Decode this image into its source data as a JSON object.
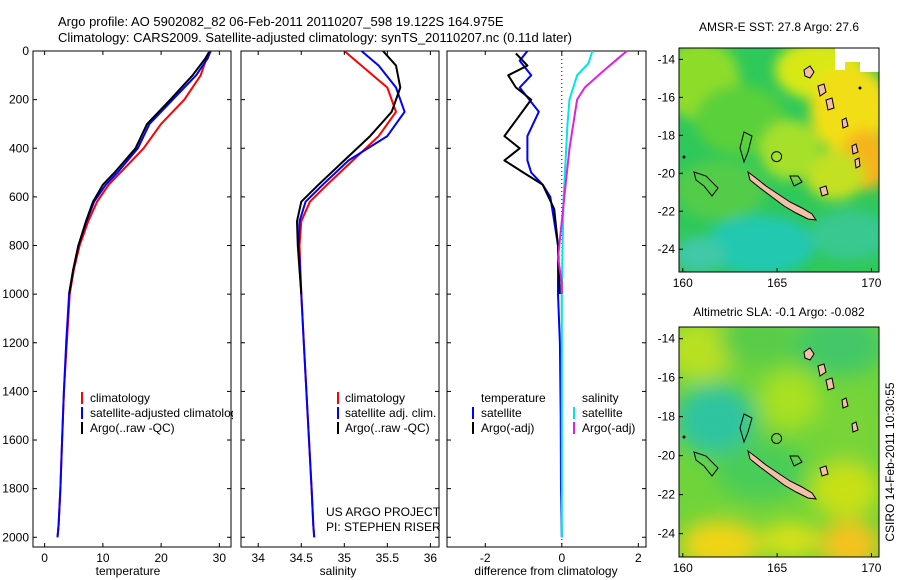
{
  "header": {
    "title_line1": "Argo profile: AO 5902082_82 06-Feb-2011 20110207_598 19.122S 164.975E",
    "title_line2": "Climatology: CARS2009. Satellite-adjusted climatology: synTS_20110207.nc (0.11d later)"
  },
  "colors": {
    "climatology": "#ff0000",
    "satellite": "#0000ff",
    "argo": "#000000",
    "sal_satellite": "#00e5e5",
    "sal_argo": "#e020e0",
    "land": "#f4bfa8"
  },
  "pi_text": {
    "line1": "US ARGO PROJECT",
    "line2": "PI: STEPHEN RISER"
  },
  "side_label": "CSIRO 14-Feb-2011 10:30:55",
  "chart_data": [
    {
      "type": "line",
      "name": "temperature-profile",
      "title": "",
      "xlabel": "temperature",
      "ylabel": "",
      "xlim": [
        -2,
        32
      ],
      "ylim": [
        2040,
        0
      ],
      "xticks": [
        0,
        10,
        20,
        30
      ],
      "yticks": [
        0,
        200,
        400,
        600,
        800,
        1000,
        1200,
        1400,
        1600,
        1800,
        2000
      ],
      "legend": [
        "climatology",
        "satellite-adjusted climatology",
        "Argo(..raw -QC)"
      ],
      "series": [
        {
          "name": "climatology",
          "color": "#ff0000",
          "x": [
            28.3,
            27.8,
            26.8,
            24.0,
            20.0,
            17.0,
            13.0,
            11.0,
            9.0,
            7.5,
            6.0,
            5.0,
            4.3,
            3.8,
            3.3,
            3.0,
            2.7,
            2.4,
            2.2
          ],
          "y": [
            0,
            30,
            100,
            200,
            300,
            400,
            500,
            550,
            620,
            700,
            800,
            900,
            1000,
            1200,
            1400,
            1600,
            1800,
            1950,
            2000
          ]
        },
        {
          "name": "satellite",
          "color": "#0000ff",
          "x": [
            28.5,
            28.0,
            26.0,
            22.0,
            18.0,
            16.0,
            12.5,
            10.5,
            8.5,
            7.2,
            5.8,
            4.9,
            4.2,
            3.7,
            3.3,
            3.0,
            2.7,
            2.4,
            2.2
          ],
          "y": [
            0,
            30,
            100,
            200,
            300,
            400,
            500,
            550,
            620,
            700,
            800,
            900,
            1000,
            1200,
            1400,
            1600,
            1800,
            1950,
            2000
          ]
        },
        {
          "name": "Argo",
          "color": "#000000",
          "x": [
            28.2,
            27.6,
            25.4,
            21.6,
            17.6,
            15.6,
            12.0,
            10.0,
            8.3,
            7.1,
            5.8,
            4.9,
            4.2
          ],
          "y": [
            5,
            30,
            100,
            200,
            300,
            400,
            500,
            550,
            620,
            700,
            800,
            900,
            1000
          ]
        }
      ]
    },
    {
      "type": "line",
      "name": "salinity-profile",
      "title": "",
      "xlabel": "salinity",
      "ylabel": "",
      "xlim": [
        33.8,
        36.1
      ],
      "ylim": [
        2040,
        0
      ],
      "xticks": [
        34,
        34.5,
        35,
        35.5,
        36
      ],
      "yticks": [
        0,
        200,
        400,
        600,
        800,
        1000,
        1200,
        1400,
        1600,
        1800,
        2000
      ],
      "legend": [
        "climatology",
        "satellite adj. clim.",
        "Argo(..raw -QC)"
      ],
      "series": [
        {
          "name": "climatology",
          "color": "#ff0000",
          "x": [
            35.0,
            35.2,
            35.5,
            35.6,
            35.4,
            35.1,
            34.8,
            34.6,
            34.5,
            34.48,
            34.5,
            34.53,
            34.56,
            34.59,
            34.62,
            34.64,
            34.65
          ],
          "y": [
            0,
            60,
            150,
            250,
            350,
            450,
            550,
            620,
            700,
            800,
            1000,
            1200,
            1400,
            1600,
            1800,
            1950,
            2000
          ]
        },
        {
          "name": "satellite",
          "color": "#0000ff",
          "x": [
            35.2,
            35.4,
            35.6,
            35.7,
            35.5,
            35.05,
            34.75,
            34.55,
            34.48,
            34.47,
            34.5,
            34.53,
            34.56,
            34.59,
            34.62,
            34.64,
            34.65
          ],
          "y": [
            0,
            60,
            150,
            250,
            350,
            450,
            550,
            620,
            700,
            800,
            1000,
            1200,
            1400,
            1600,
            1800,
            1950,
            2000
          ]
        },
        {
          "name": "Argo",
          "color": "#000000",
          "x": [
            35.45,
            35.6,
            35.65,
            35.55,
            35.3,
            35.0,
            34.7,
            34.5,
            34.45,
            34.46,
            34.48,
            34.5
          ],
          "y": [
            0,
            60,
            150,
            250,
            350,
            450,
            550,
            620,
            700,
            800,
            900,
            1000
          ]
        }
      ]
    },
    {
      "type": "line",
      "name": "difference-profile",
      "title": "",
      "xlabel": "difference from climatology",
      "ylabel": "",
      "xlim": [
        -3,
        2.2
      ],
      "ylim": [
        2040,
        0
      ],
      "xticks": [
        -2,
        0,
        2
      ],
      "yticks": [
        0,
        200,
        400,
        600,
        800,
        1000,
        1200,
        1400,
        1600,
        1800,
        2000
      ],
      "zero_line": true,
      "legend": [
        "temperature",
        "satellite",
        "Argo(-adj)",
        "salinity",
        "satellite",
        "Argo(-adj)"
      ],
      "series": [
        {
          "name": "temperature satellite",
          "color": "#0000ff",
          "x": [
            -0.9,
            -1.1,
            -0.8,
            -1.1,
            -0.6,
            -0.9,
            -0.9,
            -0.8,
            -0.5,
            -0.3,
            -0.2,
            -0.1,
            -0.1,
            -0.05,
            -0.03,
            -0.02,
            0.0
          ],
          "y": [
            0,
            40,
            100,
            150,
            250,
            350,
            450,
            500,
            550,
            600,
            700,
            800,
            1000,
            1200,
            1500,
            1800,
            2000
          ]
        },
        {
          "name": "temperature Argo",
          "color": "#000000",
          "x": [
            -1.2,
            -0.9,
            -1.4,
            -1.2,
            -0.8,
            -1.5,
            -1.1,
            -1.5,
            -1.0,
            -0.5,
            -0.2,
            -0.1,
            -0.05
          ],
          "y": [
            10,
            60,
            100,
            150,
            200,
            350,
            400,
            450,
            500,
            550,
            650,
            800,
            1000
          ]
        },
        {
          "name": "salinity satellite",
          "color": "#00e5e5",
          "x": [
            0.8,
            0.7,
            0.4,
            0.2,
            0.15,
            0.1,
            0.05,
            0.02,
            0.0,
            0.0,
            0.0,
            0.0
          ],
          "y": [
            0,
            50,
            100,
            200,
            300,
            450,
            600,
            800,
            1000,
            1400,
            1800,
            2000
          ]
        },
        {
          "name": "salinity Argo",
          "color": "#e020e0",
          "x": [
            1.7,
            1.4,
            1.1,
            0.6,
            0.4,
            0.2,
            0.1,
            0.0,
            -0.1,
            0.0,
            0.0
          ],
          "y": [
            0,
            40,
            80,
            150,
            200,
            400,
            550,
            700,
            850,
            950,
            1000
          ]
        }
      ]
    },
    {
      "type": "heatmap",
      "name": "amsre-sst-map",
      "title": "AMSR-E SST: 27.8 Argo: 27.6",
      "xlim": [
        159.8,
        170.4
      ],
      "ylim": [
        -25.2,
        -13.4
      ],
      "xticks": [
        160,
        165,
        170
      ],
      "yticks": [
        -14,
        -16,
        -18,
        -20,
        -22,
        -24
      ],
      "profile_lon": 164.975,
      "profile_lat": -19.122
    },
    {
      "type": "heatmap",
      "name": "altimetric-sla-map",
      "title": "Altimetric SLA: -0.1 Argo: -0.082",
      "xlim": [
        159.8,
        170.4
      ],
      "ylim": [
        -25.2,
        -13.4
      ],
      "xticks": [
        160,
        165,
        170
      ],
      "yticks": [
        -14,
        -16,
        -18,
        -20,
        -22,
        -24
      ],
      "profile_lon": 164.975,
      "profile_lat": -19.122
    }
  ]
}
